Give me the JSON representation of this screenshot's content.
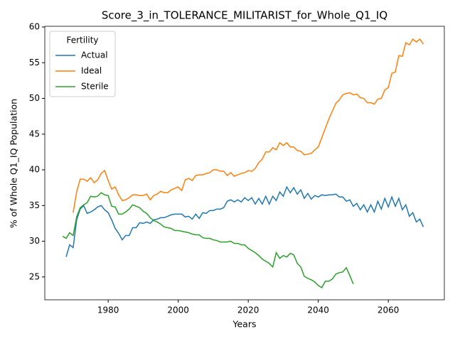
{
  "chart_data": {
    "type": "line",
    "title": "Score_3_in_TOLERANCE_MILITARIST_for_Whole_Q1_IQ",
    "xlabel": "Years",
    "ylabel": "% of Whole Q1_IQ Population",
    "legend_title": "Fertility",
    "legend": "upper left",
    "xlim": [
      1961.9,
      2076
    ],
    "ylim": [
      21.8,
      60.1
    ],
    "xticks": [
      1980,
      2000,
      2020,
      2040,
      2060
    ],
    "yticks": [
      25,
      30,
      35,
      40,
      45,
      50,
      55,
      60
    ],
    "x": [
      1967,
      1968,
      1969,
      1970,
      1971,
      1972,
      1973,
      1974,
      1975,
      1976,
      1977,
      1978,
      1979,
      1980,
      1981,
      1982,
      1983,
      1984,
      1985,
      1986,
      1987,
      1988,
      1989,
      1990,
      1991,
      1992,
      1993,
      1994,
      1995,
      1996,
      1997,
      1998,
      1999,
      2000,
      2001,
      2002,
      2003,
      2004,
      2005,
      2006,
      2007,
      2008,
      2009,
      2010,
      2011,
      2012,
      2013,
      2014,
      2015,
      2016,
      2017,
      2018,
      2019,
      2020,
      2021,
      2022,
      2023,
      2024,
      2025,
      2026,
      2027,
      2028,
      2029,
      2030,
      2031,
      2032,
      2033,
      2034,
      2035,
      2036,
      2037,
      2038,
      2039,
      2040,
      2041,
      2042,
      2043,
      2044,
      2045,
      2046,
      2047,
      2048,
      2049,
      2050,
      2051,
      2052,
      2053,
      2054,
      2055,
      2056,
      2057,
      2058,
      2059,
      2060,
      2061,
      2062,
      2063,
      2064,
      2065,
      2066,
      2067,
      2068,
      2069,
      2070
    ],
    "series": [
      {
        "name": "Actual",
        "color": "#1f77b4",
        "values": [
          null,
          27.8,
          29.5,
          29.1,
          33,
          34.5,
          35,
          33.9,
          34.1,
          34.4,
          34.8,
          35,
          34.4,
          34,
          33,
          31.8,
          31.1,
          30.2,
          30.8,
          30.8,
          31.9,
          31.9,
          32.6,
          32.5,
          32.7,
          32.5,
          33,
          33.1,
          33.3,
          33.3,
          33.5,
          33.7,
          33.8,
          33.8,
          33.8,
          33.4,
          33.5,
          33.1,
          33.8,
          33.2,
          34,
          33.9,
          34.3,
          34.3,
          34.5,
          34.5,
          34.7,
          35.6,
          35.8,
          35.5,
          35.8,
          35.5,
          36.1,
          35.7,
          36.1,
          35.2,
          36,
          35.2,
          36.3,
          35.2,
          36.3,
          35.7,
          36.9,
          36.3,
          37.6,
          36.8,
          37.5,
          36.6,
          37.2,
          36,
          36.7,
          35.9,
          36.4,
          36.2,
          36.5,
          36.4,
          36.5,
          36.5,
          36.6,
          36.2,
          36.2,
          35.6,
          35.8,
          34.9,
          35.3,
          34.4,
          35.1,
          34.1,
          35.1,
          34.1,
          35.6,
          34.5,
          36,
          34.8,
          36.2,
          34.9,
          36,
          34.4,
          35.1,
          33.5,
          34,
          32.7,
          33.1,
          32
        ]
      },
      {
        "name": "Ideal",
        "color": "#ff7f0e",
        "values": [
          null,
          null,
          null,
          34,
          36.9,
          38.7,
          38.7,
          38.4,
          38.9,
          38.2,
          38.6,
          39.5,
          39.9,
          38.5,
          37.3,
          37.6,
          36.5,
          35.7,
          35.8,
          36.1,
          36.5,
          36.5,
          36.4,
          36.4,
          36.6,
          35.8,
          36.4,
          36.6,
          37,
          36.8,
          36.8,
          37.2,
          37.4,
          37.6,
          37.1,
          38.6,
          38.8,
          38.5,
          39.2,
          39.3,
          39.3,
          39.5,
          39.6,
          40,
          40,
          39.8,
          39.8,
          39.2,
          39.6,
          39.1,
          39.3,
          39.5,
          39.6,
          39.9,
          39.8,
          40.2,
          41,
          41.5,
          42.5,
          42.5,
          43.1,
          42.8,
          43.8,
          43.4,
          43.8,
          43.2,
          43.2,
          42.7,
          42.6,
          42.1,
          42.2,
          42.3,
          42.8,
          43.2,
          44.5,
          45.8,
          47.1,
          48.2,
          49.3,
          49.8,
          50.5,
          50.7,
          50.8,
          50.5,
          50.6,
          50.1,
          50,
          49.4,
          49.4,
          49.2,
          49.9,
          50,
          51.2,
          51.5,
          53.5,
          53.7,
          56,
          55.9,
          57.8,
          57.5,
          58.3,
          57.9,
          58.3,
          57.6
        ]
      },
      {
        "name": "Sterile",
        "color": "#2ca02c",
        "values": [
          30.7,
          30.4,
          31.2,
          30.8,
          33.4,
          34.7,
          35.1,
          35.4,
          36.3,
          36.2,
          36.3,
          36.8,
          36.5,
          36.4,
          34.9,
          34.8,
          33.8,
          33.8,
          34.1,
          34.5,
          35.1,
          34.9,
          34.7,
          34.2,
          33.9,
          33.3,
          32.9,
          32.7,
          32.4,
          32,
          31.9,
          31.8,
          31.5,
          31.5,
          31.4,
          31.3,
          31.2,
          31,
          30.9,
          30.9,
          30.5,
          30.4,
          30.4,
          30.2,
          30.1,
          29.9,
          29.9,
          29.9,
          30,
          29.7,
          29.7,
          29.5,
          29.5,
          29,
          28.7,
          28.4,
          28,
          27.5,
          27.2,
          26.9,
          26.4,
          28.4,
          27.6,
          28,
          27.8,
          28.3,
          28.1,
          26.9,
          26.4,
          25.1,
          24.8,
          24.6,
          24.3,
          23.8,
          23.5,
          24.4,
          24.4,
          24.7,
          25.4,
          25.6,
          25.7,
          26.3,
          25.2,
          24,
          null,
          null,
          null,
          null,
          null,
          null,
          null,
          null,
          null,
          null,
          null,
          null,
          null,
          null,
          null,
          null,
          null,
          null,
          null,
          null
        ]
      }
    ]
  }
}
